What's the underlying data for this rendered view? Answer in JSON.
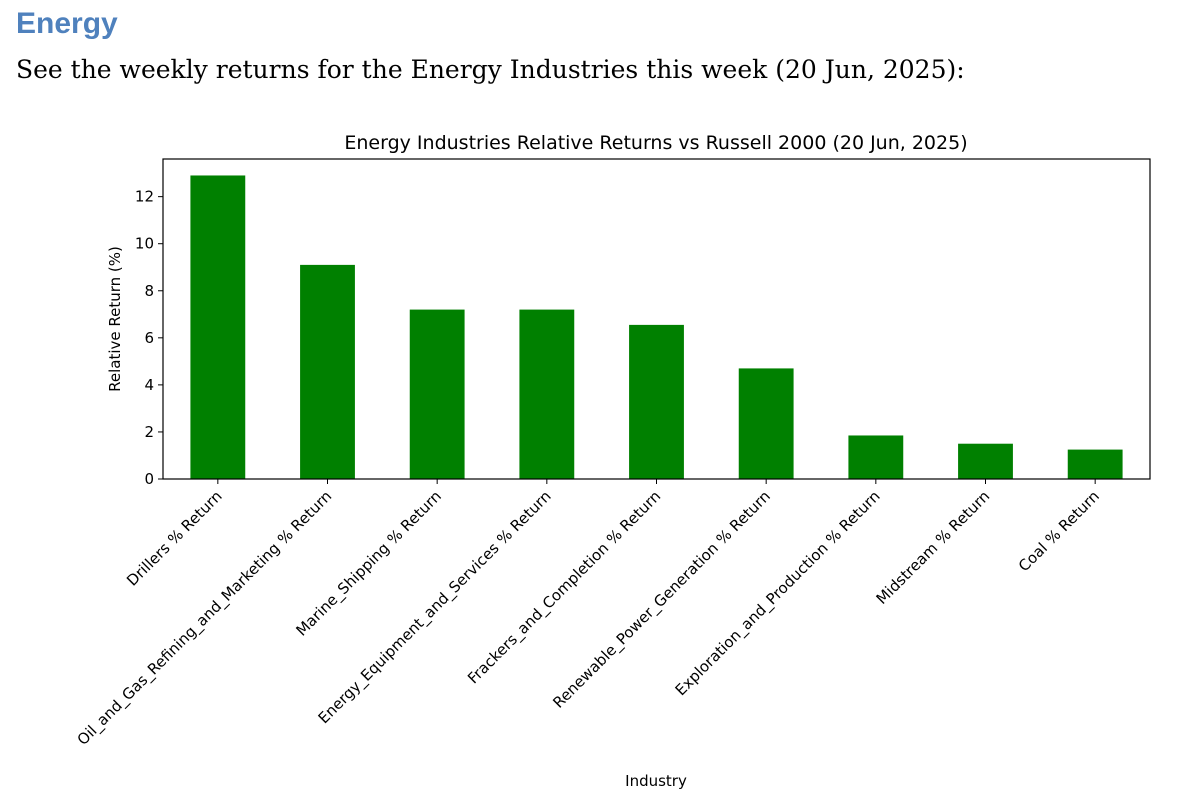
{
  "document": {
    "heading": "Energy",
    "intro": "See the weekly returns for the Energy Industries this week (20 Jun, 2025):"
  },
  "chart_data": {
    "type": "bar",
    "title": "Energy Industries Relative Returns vs Russell 2000 (20 Jun, 2025)",
    "xlabel": "Industry",
    "ylabel": "Relative Return (%)",
    "categories": [
      "Drillers % Return",
      "Oil_and_Gas_Refining_and_Marketing % Return",
      "Marine_Shipping % Return",
      "Energy_Equipment_and_Services % Return",
      "Frackers_and_Completion % Return",
      "Renewable_Power_Generation % Return",
      "Exploration_and_Production % Return",
      "Midstream % Return",
      "Coal % Return"
    ],
    "values": [
      12.9,
      9.1,
      7.2,
      7.2,
      6.55,
      4.7,
      1.85,
      1.5,
      1.25
    ],
    "ylim": [
      0,
      13.6
    ],
    "yticks": [
      0,
      2,
      4,
      6,
      8,
      10,
      12
    ],
    "bar_color": "#008000",
    "grid": false,
    "legend": "none"
  }
}
